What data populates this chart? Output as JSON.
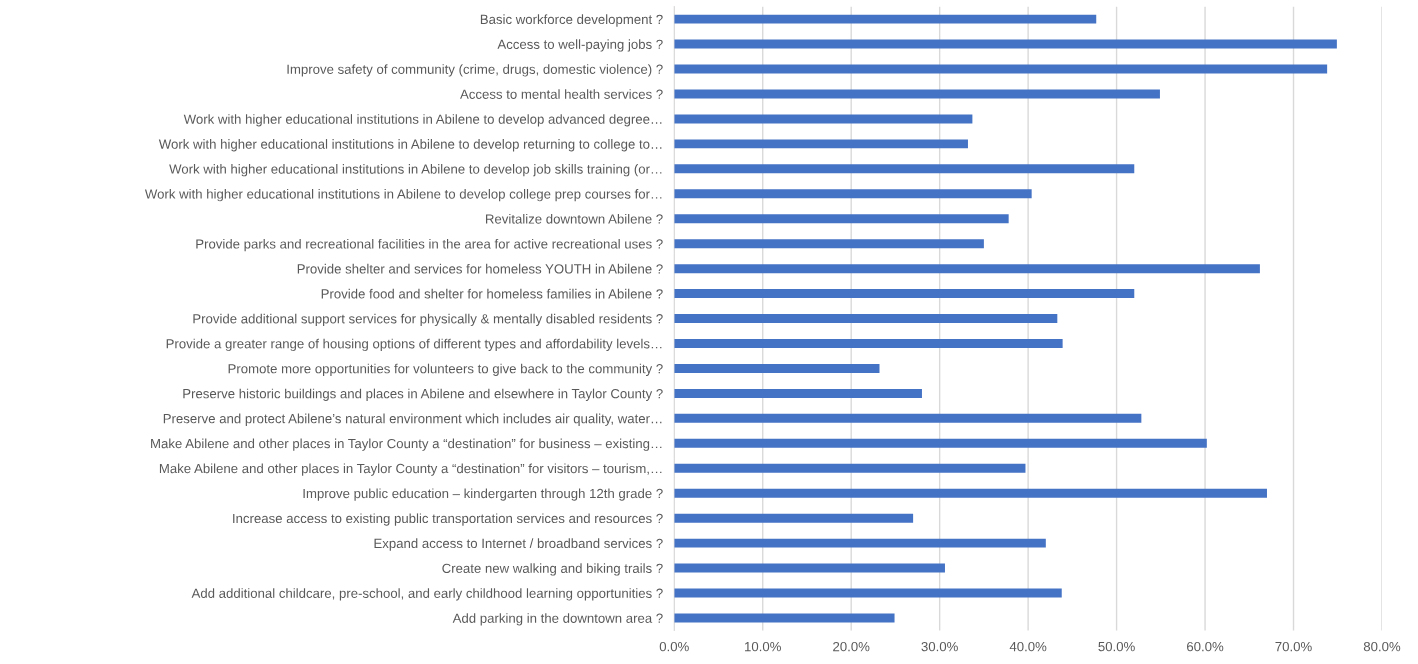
{
  "chart_data": {
    "type": "bar",
    "orientation": "horizontal",
    "color": "#4472c4",
    "categories": [
      "Basic workforce development ?",
      "Access to well-paying jobs ?",
      "Improve safety of community (crime, drugs, domestic violence) ?",
      "Access to mental health services ?",
      "Work with higher educational institutions in Abilene to develop advanced degree…",
      "Work with higher educational institutions in Abilene to develop returning to college to…",
      "Work with higher educational institutions in Abilene to develop job skills training (or…",
      "Work with higher educational institutions in Abilene to develop college prep courses for…",
      "Revitalize downtown Abilene ?",
      "Provide parks and recreational facilities in the area for active recreational uses ?",
      "Provide shelter and services for homeless YOUTH in Abilene ?",
      "Provide food and shelter for homeless families in Abilene ?",
      "Provide additional support services for physically & mentally disabled residents ?",
      "Provide a greater range of housing options of different types and affordability levels…",
      "Promote more opportunities for volunteers to give back to the community ?",
      "Preserve historic buildings and places in Abilene and elsewhere in Taylor County ?",
      "Preserve and protect Abilene’s natural environment which includes air quality, water…",
      "Make Abilene and other places in Taylor County a “destination” for business – existing…",
      "Make Abilene and other places in Taylor County a “destination” for visitors – tourism,…",
      "Improve public education – kindergarten through 12th grade ?",
      "Increase access to existing public transportation services and resources ?",
      "Expand access to Internet / broadband services ?",
      "Create new walking and biking trails ?",
      "Add additional childcare, pre-school, and early childhood learning opportunities ?",
      "Add parking in the downtown area ?"
    ],
    "values": [
      47.7,
      74.9,
      73.8,
      54.9,
      33.7,
      33.2,
      52.0,
      40.4,
      37.8,
      35.0,
      66.2,
      52.0,
      43.3,
      43.9,
      23.2,
      28.0,
      52.8,
      60.2,
      39.7,
      67.0,
      27.0,
      42.0,
      30.6,
      43.8,
      24.9
    ],
    "xlim": [
      0,
      80
    ],
    "xticks": [
      {
        "value": 0,
        "label": "0.0%"
      },
      {
        "value": 10,
        "label": "10.0%"
      },
      {
        "value": 20,
        "label": "20.0%"
      },
      {
        "value": 30,
        "label": "30.0%"
      },
      {
        "value": 40,
        "label": "40.0%"
      },
      {
        "value": 50,
        "label": "50.0%"
      },
      {
        "value": 60,
        "label": "60.0%"
      },
      {
        "value": 70,
        "label": "70.0%"
      },
      {
        "value": 80,
        "label": "80.0%"
      }
    ],
    "grid": "x",
    "legend": false
  }
}
